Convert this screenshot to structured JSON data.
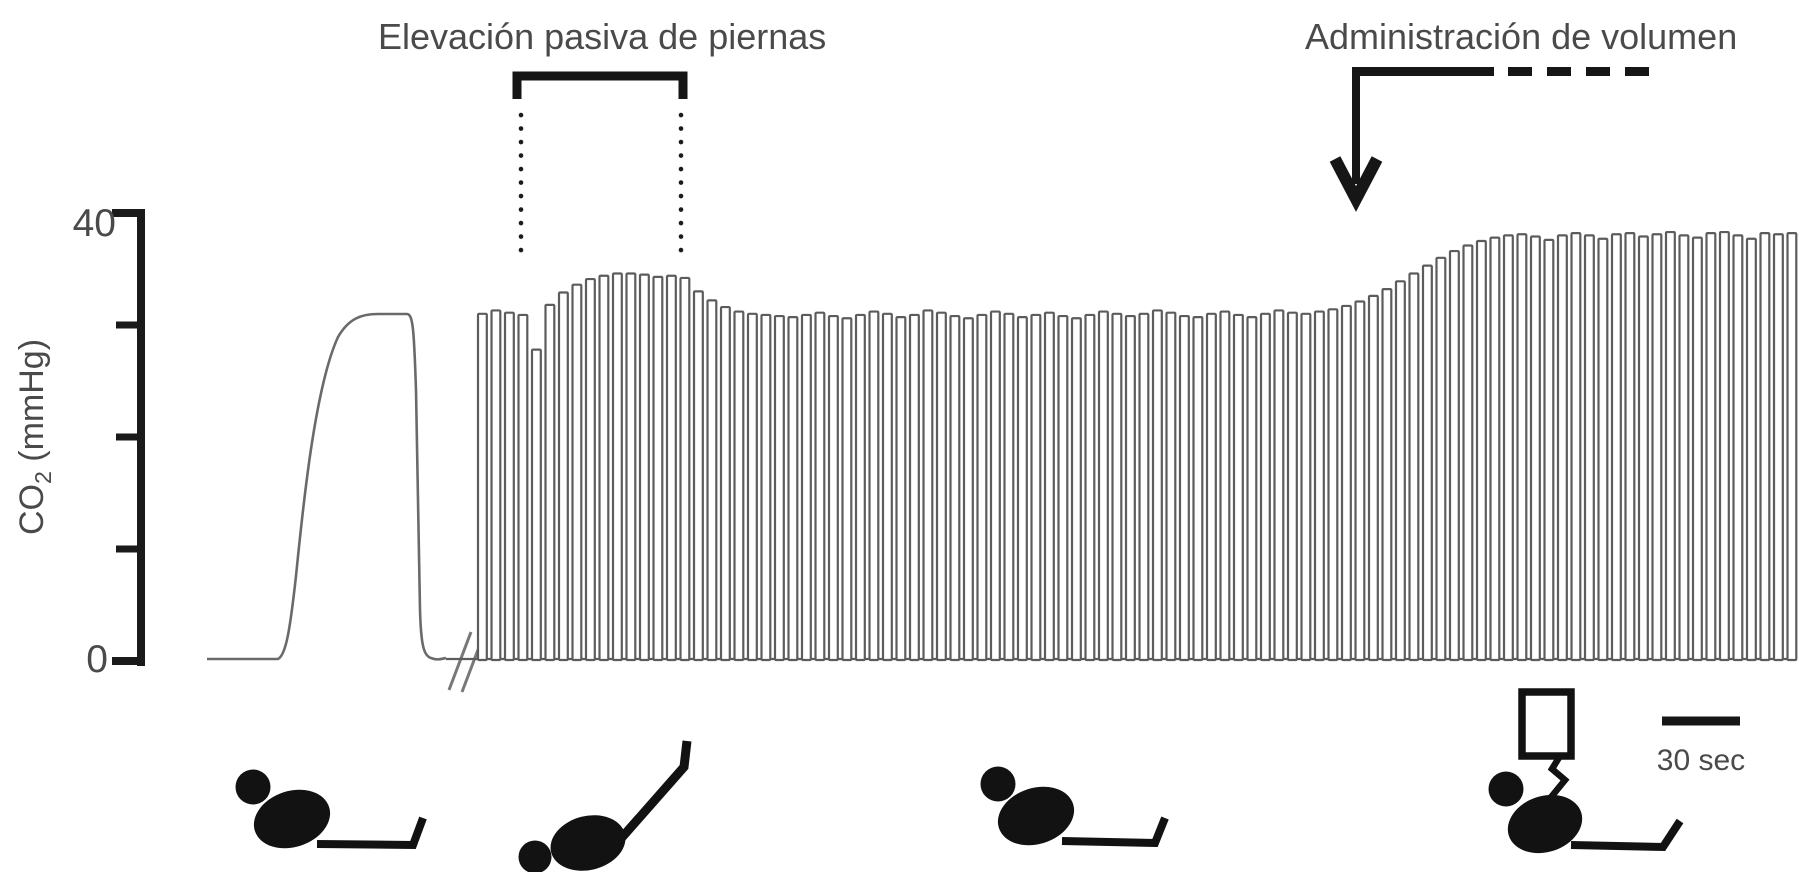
{
  "figure": {
    "background_color": "#ffffff",
    "axis_color": "#1a1a1a",
    "trace_color": "#6a6a6a",
    "breath_stroke_color": "#5c5c5c",
    "annotation_color": "#161616",
    "label_color": "#4a4a4a",
    "icon_color": "#121212"
  },
  "y_axis": {
    "label": {
      "prefix": "CO",
      "subscript": "2",
      "suffix": " (mmHg)"
    },
    "top_tick_label": "40",
    "bottom_tick_label": "0"
  },
  "annotations": {
    "passive_leg_raise": {
      "label": "Elevación pasiva de piernas",
      "marker": "bracket-with-dotted-drop-lines"
    },
    "volume_administration": {
      "label": "Administración de volumen",
      "marker": "down-arrow-with-dashed-extension"
    },
    "scale_bar": {
      "label": "30 sec",
      "seconds": 30
    }
  },
  "icons": [
    {
      "name": "patient-supine-icon"
    },
    {
      "name": "patient-legs-raised-icon"
    },
    {
      "name": "patient-supine-icon"
    },
    {
      "name": "patient-iv-volume-icon"
    }
  ],
  "chart_data": {
    "type": "line",
    "title": "",
    "ylabel": "CO2 (mmHg)",
    "ylim": [
      0,
      40
    ],
    "yticks": [
      0,
      10,
      20,
      30,
      40
    ],
    "ytick_labels": [
      "0",
      "",
      "",
      "",
      "40"
    ],
    "grid": false,
    "x_unit": "time",
    "time_scale_label": "30 sec",
    "calibration_breath": {
      "shape": "rounded-plateau",
      "peak_mmHg": 31,
      "followed_by_trace_break": true
    },
    "breaths_mmHg": [
      31.0,
      31.3,
      31.1,
      30.9,
      27.8,
      31.8,
      32.9,
      33.6,
      34.1,
      34.4,
      34.6,
      34.6,
      34.5,
      34.3,
      34.4,
      34.2,
      33.0,
      32.2,
      31.6,
      31.2,
      31.0,
      30.9,
      30.8,
      30.7,
      30.9,
      31.1,
      30.8,
      30.6,
      30.9,
      31.2,
      31.0,
      30.7,
      30.9,
      31.3,
      31.1,
      30.8,
      30.6,
      30.9,
      31.2,
      31.0,
      30.7,
      30.9,
      31.1,
      30.8,
      30.6,
      30.9,
      31.2,
      31.0,
      30.8,
      31.0,
      31.3,
      31.1,
      30.8,
      30.7,
      31.0,
      31.2,
      30.9,
      30.7,
      31.0,
      31.3,
      31.1,
      31.0,
      31.2,
      31.4,
      31.7,
      32.1,
      32.6,
      33.2,
      33.9,
      34.6,
      35.3,
      36.0,
      36.6,
      37.1,
      37.5,
      37.8,
      38.0,
      38.1,
      37.9,
      37.6,
      38.0,
      38.2,
      38.0,
      37.7,
      38.1,
      38.2,
      37.9,
      38.1,
      38.3,
      38.0,
      37.8,
      38.2,
      38.3,
      38.0,
      37.7,
      38.2,
      38.1,
      38.2
    ],
    "events": {
      "passive_leg_raise": {
        "breath_start": 5,
        "breath_end": 15
      },
      "volume_administration": {
        "breath_index": 65
      }
    }
  }
}
